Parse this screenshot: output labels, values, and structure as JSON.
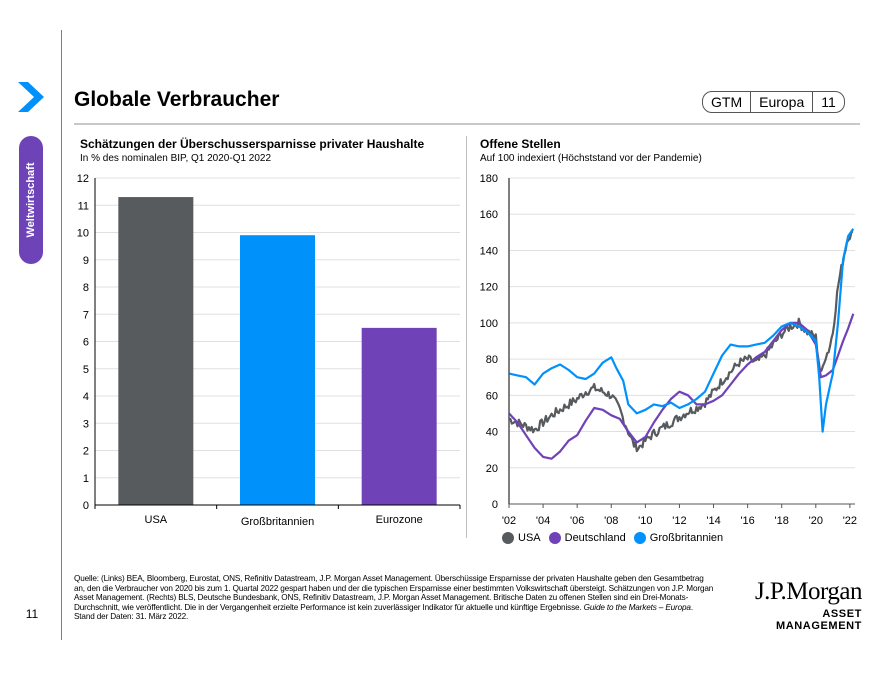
{
  "page": {
    "title": "Globale Verbraucher",
    "section_tab": "Weltwirtschaft",
    "page_number": "11",
    "badge": [
      "GTM",
      "Europa",
      "11"
    ],
    "colors": {
      "usa": "#575b5e",
      "uk": "#0091fa",
      "eurozone": "#6f42b8",
      "purple_tab": "#6e43b8",
      "chevron": "#0091fa"
    }
  },
  "footnote": {
    "text_before_italic": "Quelle: (Links) BEA, Bloomberg, Eurostat, ONS, Refinitiv Datastream, J.P. Morgan Asset Management. Überschüssige Ersparnisse der privaten Haushalte geben den Gesamtbetrag an, den die Verbraucher von 2020 bis zum 1. Quartal 2022 gespart haben und der die typischen Ersparnisse einer bestimmten Volkswirtschaft übersteigt. Schätzungen von J.P. Morgan Asset Management. (Rechts) BLS, Deutsche Bundesbank, ONS, Refinitiv Datastream, J.P. Morgan Asset Management. Britische Daten zu offenen Stellen sind ein Drei-Monats-Durchschnitt, wie veröffentlicht. Die in der Vergangenheit erzielte Performance ist kein zuverlässiger Indikator für aktuelle und künftige Ergebnisse. ",
    "italic": "Guide to the Markets – Europa",
    "text_after_italic": ". Stand der Daten: 31. März 2022."
  },
  "logo": {
    "line1": "J.P.Morgan",
    "line2": "ASSET MANAGEMENT"
  },
  "chart_data": [
    {
      "type": "bar",
      "title": "Schätzungen der Überschussersparnisse privater Haushalte",
      "subtitle": "In % des nominalen BIP, Q1 2020-Q1 2022",
      "categories": [
        "USA",
        "Großbritannien",
        "Eurozone"
      ],
      "values": [
        11.3,
        9.9,
        6.5
      ],
      "colors": [
        "#575b5e",
        "#0091fa",
        "#6f42b8"
      ],
      "xlabel": "",
      "ylabel": "",
      "ylim": [
        0,
        12
      ],
      "yticks": [
        0,
        1,
        2,
        3,
        4,
        5,
        6,
        7,
        8,
        9,
        10,
        11,
        12
      ],
      "grid": true
    },
    {
      "type": "line",
      "title": "Offene Stellen",
      "subtitle": "Auf 100 indexiert (Höchststand vor der Pandemie)",
      "xlim": [
        2002,
        2022.3
      ],
      "ylim": [
        0,
        180
      ],
      "yticks": [
        0,
        20,
        40,
        60,
        80,
        100,
        120,
        140,
        160,
        180
      ],
      "xticks": [
        2002,
        2004,
        2006,
        2008,
        2010,
        2012,
        2014,
        2016,
        2018,
        2020,
        2022
      ],
      "xtick_labels": [
        "'02",
        "'04",
        "'06",
        "'08",
        "'10",
        "'12",
        "'14",
        "'16",
        "'18",
        "'20",
        "'22"
      ],
      "grid": true,
      "legend": "bottom-left",
      "series": [
        {
          "name": "USA",
          "color": "#575b5e",
          "noisy": true,
          "x": [
            2002,
            2002.5,
            2003,
            2003.5,
            2004,
            2004.5,
            2005,
            2005.5,
            2006,
            2006.5,
            2007,
            2007.5,
            2008,
            2008.5,
            2009,
            2009.3,
            2009.6,
            2010,
            2010.5,
            2011,
            2011.5,
            2012,
            2012.5,
            2013,
            2013.5,
            2014,
            2014.5,
            2015,
            2015.5,
            2016,
            2016.5,
            2017,
            2017.5,
            2018,
            2018.5,
            2019,
            2019.5,
            2020,
            2020.3,
            2020.5,
            2020.8,
            2021,
            2021.3,
            2021.6,
            2021.9,
            2022.2
          ],
          "y": [
            47,
            45,
            43,
            41,
            45,
            49,
            52,
            55,
            58,
            62,
            64,
            62,
            60,
            52,
            40,
            33,
            31,
            35,
            39,
            42,
            45,
            48,
            51,
            53,
            56,
            62,
            68,
            73,
            78,
            80,
            78,
            82,
            88,
            94,
            98,
            100,
            95,
            92,
            70,
            80,
            86,
            95,
            120,
            135,
            148,
            149
          ]
        },
        {
          "name": "Deutschland",
          "color": "#6f42b8",
          "noisy": false,
          "x": [
            2002,
            2002.5,
            2003,
            2003.5,
            2004,
            2004.5,
            2005,
            2005.5,
            2006,
            2006.5,
            2007,
            2007.5,
            2008,
            2008.5,
            2009,
            2009.5,
            2010,
            2010.5,
            2011,
            2011.5,
            2012,
            2012.5,
            2013,
            2013.5,
            2014,
            2014.5,
            2015,
            2015.5,
            2016,
            2016.5,
            2017,
            2017.5,
            2018,
            2018.5,
            2019,
            2019.5,
            2020,
            2020.3,
            2020.6,
            2021,
            2021.3,
            2021.6,
            2021.9,
            2022.2
          ],
          "y": [
            50,
            45,
            38,
            31,
            26,
            25,
            29,
            35,
            38,
            46,
            53,
            52,
            49,
            47,
            40,
            34,
            37,
            45,
            52,
            58,
            62,
            60,
            55,
            55,
            57,
            60,
            66,
            72,
            77,
            81,
            84,
            90,
            96,
            100,
            100,
            96,
            88,
            70,
            71,
            74,
            82,
            90,
            97,
            105
          ]
        },
        {
          "name": "Großbritannien",
          "color": "#0091fa",
          "noisy": false,
          "x": [
            2002,
            2002.5,
            2003,
            2003.5,
            2004,
            2004.5,
            2005,
            2005.5,
            2006,
            2006.5,
            2007,
            2007.5,
            2008,
            2008.3,
            2008.7,
            2009,
            2009.5,
            2010,
            2010.5,
            2011,
            2011.5,
            2012,
            2012.5,
            2013,
            2013.5,
            2014,
            2014.5,
            2015,
            2015.5,
            2016,
            2016.5,
            2017,
            2017.5,
            2018,
            2018.5,
            2019,
            2019.5,
            2020,
            2020.2,
            2020.4,
            2020.6,
            2020.9,
            2021,
            2021.3,
            2021.6,
            2021.9,
            2022.2
          ],
          "y": [
            72,
            71,
            70,
            66,
            72,
            75,
            77,
            74,
            70,
            69,
            72,
            78,
            81,
            75,
            68,
            55,
            50,
            52,
            55,
            54,
            56,
            53,
            55,
            58,
            62,
            72,
            82,
            88,
            87,
            87,
            88,
            89,
            93,
            98,
            100,
            98,
            95,
            90,
            70,
            40,
            55,
            68,
            72,
            100,
            135,
            148,
            152
          ]
        }
      ]
    }
  ]
}
